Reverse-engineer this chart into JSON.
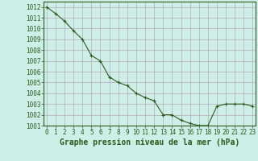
{
  "x": [
    0,
    1,
    2,
    3,
    4,
    5,
    6,
    7,
    8,
    9,
    10,
    11,
    12,
    13,
    14,
    15,
    16,
    17,
    18,
    19,
    20,
    21,
    22,
    23
  ],
  "y": [
    1012.0,
    1011.4,
    1010.7,
    1009.8,
    1009.0,
    1007.5,
    1007.0,
    1005.5,
    1005.0,
    1004.7,
    1004.0,
    1003.6,
    1003.3,
    1002.0,
    1002.0,
    1001.5,
    1001.2,
    1001.0,
    1001.0,
    1002.8,
    1003.0,
    1003.0,
    1003.0,
    1002.8
  ],
  "ylim": [
    1001,
    1012.5
  ],
  "yticks": [
    1001,
    1002,
    1003,
    1004,
    1005,
    1006,
    1007,
    1008,
    1009,
    1010,
    1011,
    1012
  ],
  "xticks": [
    0,
    1,
    2,
    3,
    4,
    5,
    6,
    7,
    8,
    9,
    10,
    11,
    12,
    13,
    14,
    15,
    16,
    17,
    18,
    19,
    20,
    21,
    22,
    23
  ],
  "xlabel": "Graphe pression niveau de la mer (hPa)",
  "line_color": "#2d5a1b",
  "marker": "+",
  "bg_color": "#ceeee8",
  "grid_color": "#b8a8b8",
  "border_color": "#2d5a1b",
  "tick_color": "#2d5a1b",
  "label_fontsize": 5.5,
  "xlabel_fontsize": 7.0
}
